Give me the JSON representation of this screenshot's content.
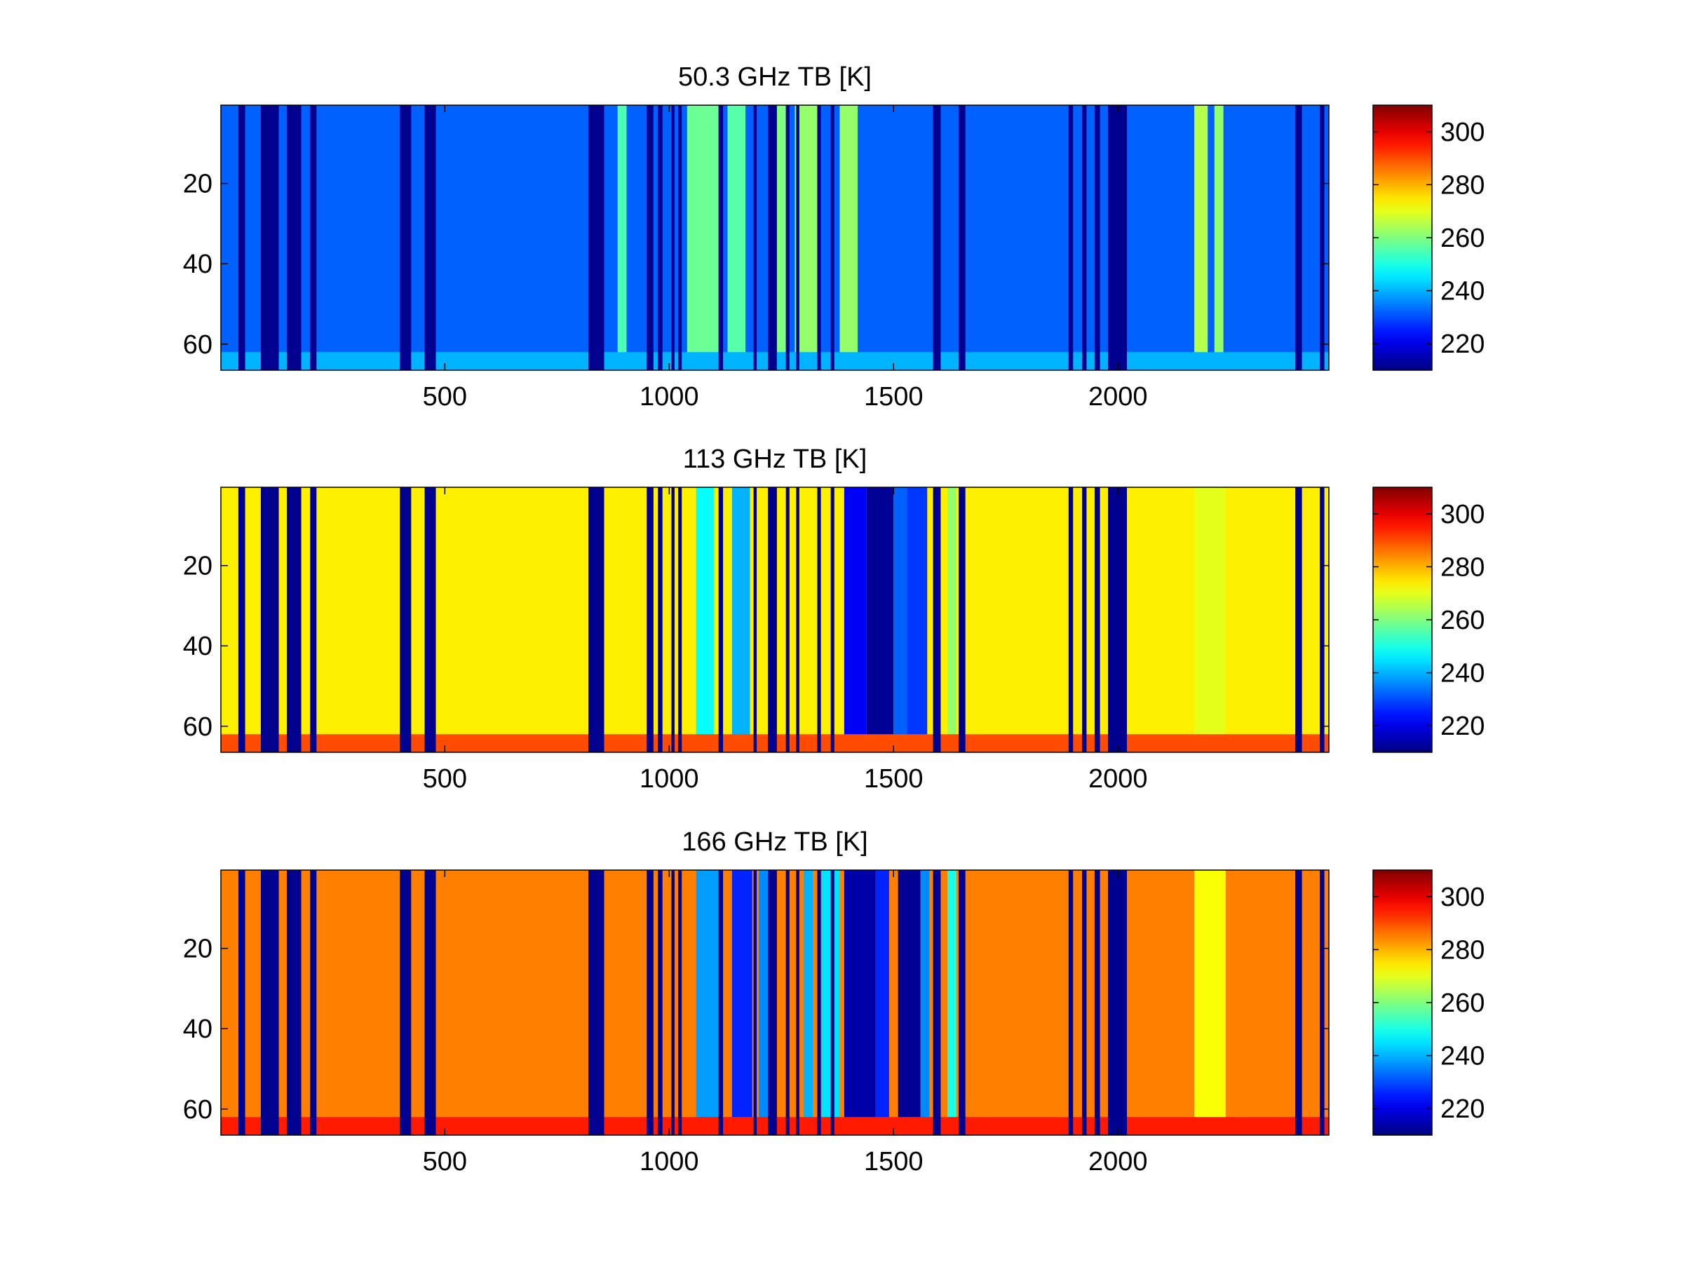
{
  "panels": [
    {
      "title": "50.3 GHz TB [K]",
      "regime": "cold",
      "x_ticks": [
        500,
        1000,
        1500,
        2000
      ],
      "y_ticks": [
        20,
        40,
        60
      ],
      "colorbar_ticks": [
        220,
        240,
        260,
        280,
        300
      ]
    },
    {
      "title": "113 GHz TB [K]",
      "regime": "warm",
      "x_ticks": [
        500,
        1000,
        1500,
        2000
      ],
      "y_ticks": [
        20,
        40,
        60
      ],
      "colorbar_ticks": [
        220,
        240,
        260,
        280,
        300
      ]
    },
    {
      "title": "166 GHz TB [K]",
      "regime": "hot",
      "x_ticks": [
        500,
        1000,
        1500,
        2000
      ],
      "y_ticks": [
        20,
        40,
        60
      ],
      "colorbar_ticks": [
        220,
        240,
        260,
        280,
        300
      ]
    }
  ],
  "chart_data": {
    "type": "heatmap",
    "layout": "3 stacked panels, shared axes",
    "colormap": "jet",
    "xlim": [
      1,
      2470
    ],
    "ylim": [
      1,
      66
    ],
    "y_reversed": true,
    "clim": [
      210,
      310
    ],
    "xlabel": "",
    "ylabel": "",
    "invalid_x_ranges": [
      [
        40,
        55
      ],
      [
        90,
        130
      ],
      [
        148,
        180
      ],
      [
        200,
        214
      ],
      [
        400,
        425
      ],
      [
        455,
        480
      ],
      [
        820,
        855
      ],
      [
        950,
        965
      ],
      [
        975,
        985
      ],
      [
        1005,
        1012
      ],
      [
        1020,
        1028
      ],
      [
        1110,
        1120
      ],
      [
        1188,
        1195
      ],
      [
        1220,
        1240
      ],
      [
        1260,
        1268
      ],
      [
        1283,
        1290
      ],
      [
        1330,
        1338
      ],
      [
        1360,
        1368
      ],
      [
        1588,
        1605
      ],
      [
        1645,
        1660
      ],
      [
        1890,
        1900
      ],
      [
        1920,
        1930
      ],
      [
        1948,
        1960
      ],
      [
        1978,
        2020
      ],
      [
        2395,
        2410
      ],
      [
        2450,
        2460
      ]
    ],
    "series": [
      {
        "name": "50.3 GHz",
        "background_K": 232,
        "bottom_rows_K": 240,
        "features": [
          {
            "x_range": [
              1040,
              1110
            ],
            "K": 258
          },
          {
            "x_range": [
              1130,
              1170
            ],
            "K": 256
          },
          {
            "x_range": [
              1230,
              1260
            ],
            "K": 260
          },
          {
            "x_range": [
              1280,
              1330
            ],
            "K": 262
          },
          {
            "x_range": [
              1380,
              1420
            ],
            "K": 262
          },
          {
            "x_range": [
              885,
              905
            ],
            "K": 255
          },
          {
            "x_range": [
              2170,
              2200
            ],
            "K": 265
          },
          {
            "x_range": [
              2215,
              2235
            ],
            "K": 262
          }
        ]
      },
      {
        "name": "113 GHz",
        "background_K": 274,
        "bottom_rows_K": 290,
        "features": [
          {
            "x_range": [
              1390,
              1440
            ],
            "K": 222
          },
          {
            "x_range": [
              1440,
              1500
            ],
            "K": 212
          },
          {
            "x_range": [
              1500,
              1530
            ],
            "K": 232
          },
          {
            "x_range": [
              1530,
              1575
            ],
            "K": 228
          },
          {
            "x_range": [
              1060,
              1100
            ],
            "K": 248
          },
          {
            "x_range": [
              1140,
              1180
            ],
            "K": 240
          },
          {
            "x_range": [
              1620,
              1640
            ],
            "K": 262
          },
          {
            "x_range": [
              2170,
              2240
            ],
            "K": 270
          }
        ]
      },
      {
        "name": "166 GHz",
        "background_K": 285,
        "bottom_rows_K": 295,
        "features": [
          {
            "x_range": [
              1060,
              1110
            ],
            "K": 238
          },
          {
            "x_range": [
              1140,
              1185
            ],
            "K": 226
          },
          {
            "x_range": [
              1200,
              1220
            ],
            "K": 236
          },
          {
            "x_range": [
              1300,
              1320
            ],
            "K": 240
          },
          {
            "x_range": [
              1340,
              1380
            ],
            "K": 245
          },
          {
            "x_range": [
              1390,
              1460
            ],
            "K": 214
          },
          {
            "x_range": [
              1460,
              1490
            ],
            "K": 226
          },
          {
            "x_range": [
              1510,
              1560
            ],
            "K": 212
          },
          {
            "x_range": [
              1560,
              1580
            ],
            "K": 236
          },
          {
            "x_range": [
              1620,
              1640
            ],
            "K": 250
          },
          {
            "x_range": [
              2170,
              2240
            ],
            "K": 272
          }
        ]
      }
    ]
  }
}
